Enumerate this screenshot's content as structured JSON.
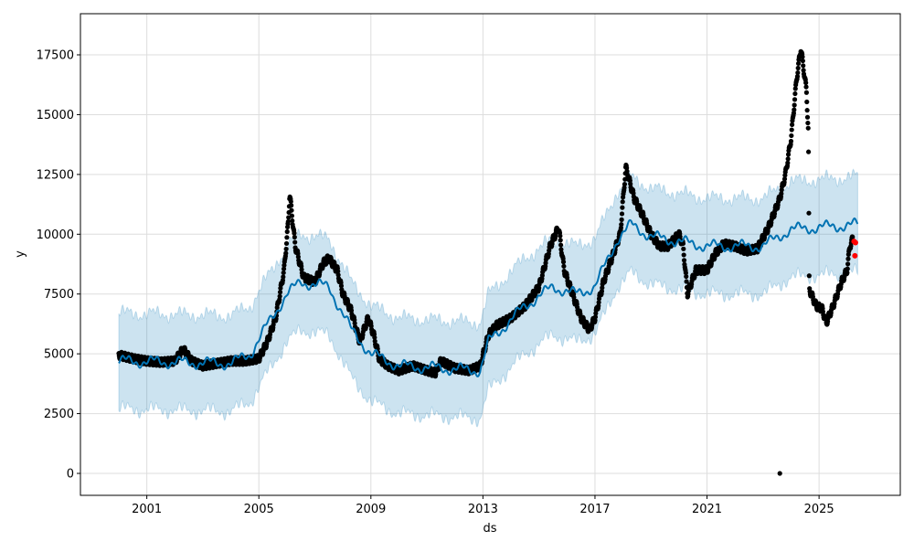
{
  "chart_data": {
    "type": "line",
    "title": "",
    "xlabel": "ds",
    "ylabel": "y",
    "xlim": [
      1998.63,
      2027.9
    ],
    "ylim": [
      -917,
      19220
    ],
    "grid": true,
    "x_ticks": [
      2001,
      2005,
      2009,
      2013,
      2017,
      2021,
      2025
    ],
    "x_tick_labels": [
      "2001",
      "2005",
      "2009",
      "2013",
      "2017",
      "2021",
      "2025"
    ],
    "y_ticks": [
      0,
      2500,
      5000,
      7500,
      10000,
      12500,
      15000,
      17500
    ],
    "y_tick_labels": [
      "0",
      "2500",
      "5000",
      "7500",
      "10000",
      "12500",
      "15000",
      "17500"
    ],
    "colors": {
      "observed": "#000000",
      "forecast": "#0072B2",
      "interval": "#0072B2",
      "test": "#ff0000"
    },
    "observed": [
      [
        2000,
        4950
      ],
      [
        2000.5,
        4800
      ],
      [
        2001,
        4700
      ],
      [
        2001.5,
        4650
      ],
      [
        2002,
        4700
      ],
      [
        2002.3,
        5200
      ],
      [
        2002.6,
        4700
      ],
      [
        2003,
        4500
      ],
      [
        2003.5,
        4600
      ],
      [
        2004,
        4700
      ],
      [
        2004.5,
        4700
      ],
      [
        2005,
        4800
      ],
      [
        2005.3,
        5500
      ],
      [
        2005.6,
        6500
      ],
      [
        2005.9,
        8500
      ],
      [
        2006.05,
        10500
      ],
      [
        2006.1,
        11700
      ],
      [
        2006.3,
        9500
      ],
      [
        2006.6,
        8200
      ],
      [
        2007,
        8000
      ],
      [
        2007.3,
        8800
      ],
      [
        2007.5,
        9000
      ],
      [
        2007.8,
        8500
      ],
      [
        2008,
        7500
      ],
      [
        2008.3,
        6800
      ],
      [
        2008.6,
        5500
      ],
      [
        2008.9,
        6500
      ],
      [
        2009.1,
        5800
      ],
      [
        2009.3,
        4800
      ],
      [
        2009.6,
        4500
      ],
      [
        2010,
        4300
      ],
      [
        2010.5,
        4500
      ],
      [
        2011,
        4300
      ],
      [
        2011.3,
        4200
      ],
      [
        2011.5,
        4700
      ],
      [
        2012,
        4400
      ],
      [
        2012.5,
        4300
      ],
      [
        2012.9,
        4500
      ],
      [
        2013.2,
        5800
      ],
      [
        2013.5,
        6200
      ],
      [
        2014,
        6500
      ],
      [
        2014.5,
        7000
      ],
      [
        2015,
        7800
      ],
      [
        2015.4,
        9500
      ],
      [
        2015.7,
        10300
      ],
      [
        2015.9,
        8500
      ],
      [
        2016.2,
        7500
      ],
      [
        2016.5,
        6500
      ],
      [
        2016.8,
        6000
      ],
      [
        2017,
        6500
      ],
      [
        2017.3,
        8000
      ],
      [
        2017.6,
        9000
      ],
      [
        2017.9,
        10000
      ],
      [
        2018.1,
        12800
      ],
      [
        2018.4,
        11500
      ],
      [
        2018.7,
        10800
      ],
      [
        2019,
        10000
      ],
      [
        2019.3,
        9500
      ],
      [
        2019.6,
        9500
      ],
      [
        2020,
        10000
      ],
      [
        2020.15,
        9500
      ],
      [
        2020.3,
        7500
      ],
      [
        2020.6,
        8500
      ],
      [
        2021,
        8500
      ],
      [
        2021.3,
        9200
      ],
      [
        2021.6,
        9600
      ],
      [
        2022,
        9500
      ],
      [
        2022.4,
        9300
      ],
      [
        2022.8,
        9400
      ],
      [
        2023.2,
        10300
      ],
      [
        2023.6,
        11500
      ],
      [
        2023.8,
        12500
      ],
      [
        2024.0,
        14000
      ],
      [
        2024.2,
        16500
      ],
      [
        2024.35,
        17800
      ],
      [
        2024.55,
        16000
      ],
      [
        2024.62,
        14200
      ],
      [
        2024.65,
        7700
      ],
      [
        2024.9,
        7000
      ],
      [
        2025.1,
        6900
      ],
      [
        2025.26,
        6300
      ],
      [
        2025.5,
        7000
      ],
      [
        2025.8,
        8000
      ],
      [
        2026.0,
        8500
      ],
      [
        2026.1,
        9500
      ],
      [
        2026.2,
        9800
      ]
    ],
    "outliers": [
      [
        2023.6,
        0
      ]
    ],
    "test_points": [
      [
        2026.25,
        9700
      ],
      [
        2026.3,
        9650
      ],
      [
        2026.28,
        9100
      ]
    ],
    "forecast": [
      [
        2000,
        4700
      ],
      [
        2004,
        4600
      ],
      [
        2004.7,
        5000
      ],
      [
        2005.3,
        6200
      ],
      [
        2006,
        7500
      ],
      [
        2006.5,
        8000
      ],
      [
        2007.5,
        7800
      ],
      [
        2008.3,
        6000
      ],
      [
        2009,
        5000
      ],
      [
        2010,
        4500
      ],
      [
        2012.9,
        4300
      ],
      [
        2013.2,
        5500
      ],
      [
        2014.5,
        7000
      ],
      [
        2015.5,
        7800
      ],
      [
        2016.3,
        7500
      ],
      [
        2017,
        7800
      ],
      [
        2017.8,
        9800
      ],
      [
        2018.3,
        10400
      ],
      [
        2019,
        9900
      ],
      [
        2021,
        9500
      ],
      [
        2023,
        9500
      ],
      [
        2023.7,
        10000
      ],
      [
        2024,
        10200
      ],
      [
        2026.38,
        10400
      ]
    ],
    "interval_halfwidth": 2000
  }
}
